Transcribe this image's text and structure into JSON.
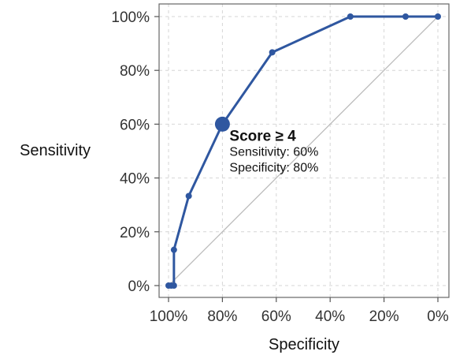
{
  "chart_data": {
    "type": "line",
    "xlabel": "Specificity",
    "ylabel": "Sensitivity",
    "x_axis_reversed": true,
    "xlim": [
      0,
      100
    ],
    "ylim": [
      0,
      100
    ],
    "x_ticks": [
      100,
      80,
      60,
      40,
      20,
      0
    ],
    "x_tick_labels": [
      "100%",
      "80%",
      "60%",
      "40%",
      "20%",
      "0%"
    ],
    "y_ticks": [
      0,
      20,
      40,
      60,
      80,
      100
    ],
    "y_tick_labels": [
      "0%",
      "20%",
      "40%",
      "60%",
      "80%",
      "100%"
    ],
    "grid": true,
    "series": [
      {
        "color": "#2f57a0",
        "points": [
          {
            "specificity": 100,
            "sensitivity": 0
          },
          {
            "specificity": 99,
            "sensitivity": 0
          },
          {
            "specificity": 98,
            "sensitivity": 0
          },
          {
            "specificity": 98,
            "sensitivity": 13.3
          },
          {
            "specificity": 92.5,
            "sensitivity": 33.3
          },
          {
            "specificity": 80,
            "sensitivity": 60
          },
          {
            "specificity": 61.5,
            "sensitivity": 86.7
          },
          {
            "specificity": 32.5,
            "sensitivity": 100
          },
          {
            "specificity": 12,
            "sensitivity": 100
          },
          {
            "specificity": 0,
            "sensitivity": 100
          }
        ]
      }
    ],
    "reference_line": {
      "from": [
        100,
        0
      ],
      "to": [
        0,
        100
      ],
      "color": "#bbbbbb"
    },
    "highlight": {
      "specificity": 80,
      "sensitivity": 60,
      "title": "Score ≥ 4",
      "line1": "Sensitivity: 60%",
      "line2": "Specificity: 80%"
    }
  }
}
